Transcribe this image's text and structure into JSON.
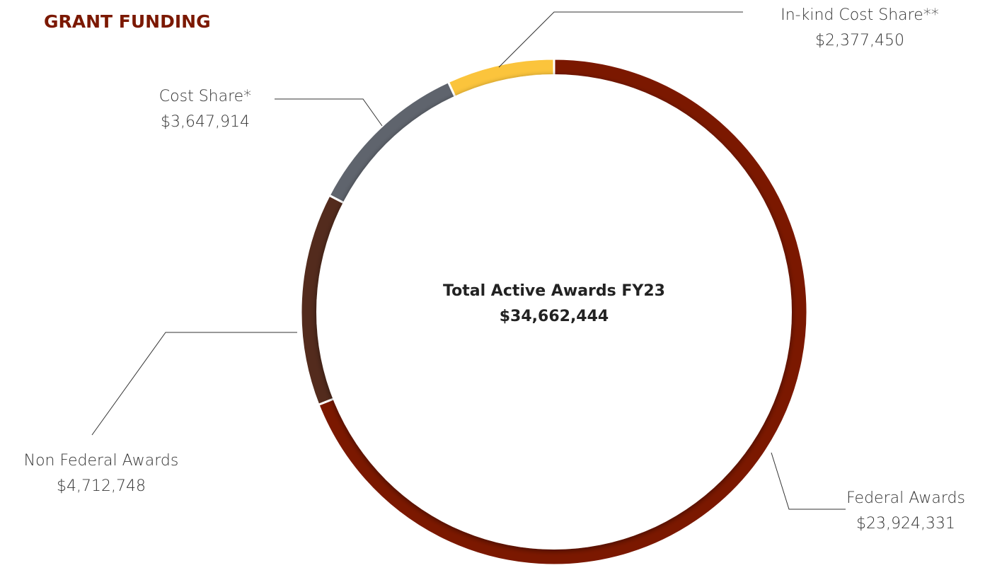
{
  "chart_data": {
    "type": "donut",
    "title": "GRANT FUNDING",
    "center_text": [
      "Total Active Awards FY23",
      "$34,662,444"
    ],
    "categories": [
      "Federal Awards",
      "Non Federal Awards",
      "Cost Share*",
      "In-kind Cost Share**"
    ],
    "values": [
      23924331,
      4712748,
      3647914,
      2377450
    ],
    "value_labels": [
      "$23,924,331",
      "$4,712,748",
      "$3,647,914",
      "$2,377,450"
    ],
    "colors": [
      "#7b1800",
      "#532b1d",
      "#5f646d",
      "#fbc43c"
    ]
  }
}
